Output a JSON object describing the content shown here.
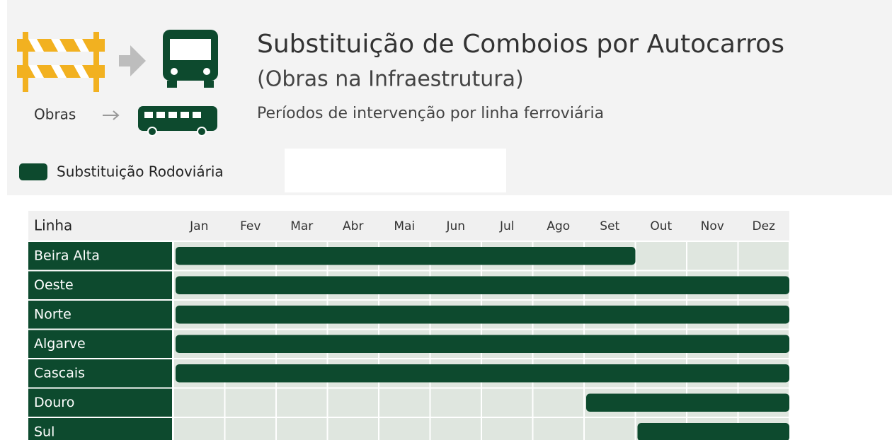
{
  "header": {
    "title": "Substituição de Comboios por Autocarros",
    "subtitle": "(Obras na Infraestrutura)",
    "description": "Períodos de intervenção por linha ferroviária",
    "icon_label": "Obras"
  },
  "chart_data": {
    "type": "gantt",
    "row_header": "Linha",
    "months": [
      "Jan",
      "Fev",
      "Mar",
      "Abr",
      "Mai",
      "Jun",
      "Jul",
      "Ago",
      "Set",
      "Out",
      "Nov",
      "Dez"
    ],
    "xlim": [
      0,
      12
    ],
    "series": [
      {
        "name": "Substituição Rodoviária",
        "color": "#0d4a2e",
        "tasks": [
          {
            "name": "Beira Alta",
            "start": 0,
            "end": 9
          },
          {
            "name": "Oeste",
            "start": 0,
            "end": 12
          },
          {
            "name": "Norte",
            "start": 0,
            "end": 12
          },
          {
            "name": "Algarve",
            "start": 0,
            "end": 12
          },
          {
            "name": "Cascais",
            "start": 0,
            "end": 12
          },
          {
            "name": "Douro",
            "start": 8,
            "end": 12
          },
          {
            "name": "Sul",
            "start": 9,
            "end": 12
          }
        ]
      }
    ]
  }
}
